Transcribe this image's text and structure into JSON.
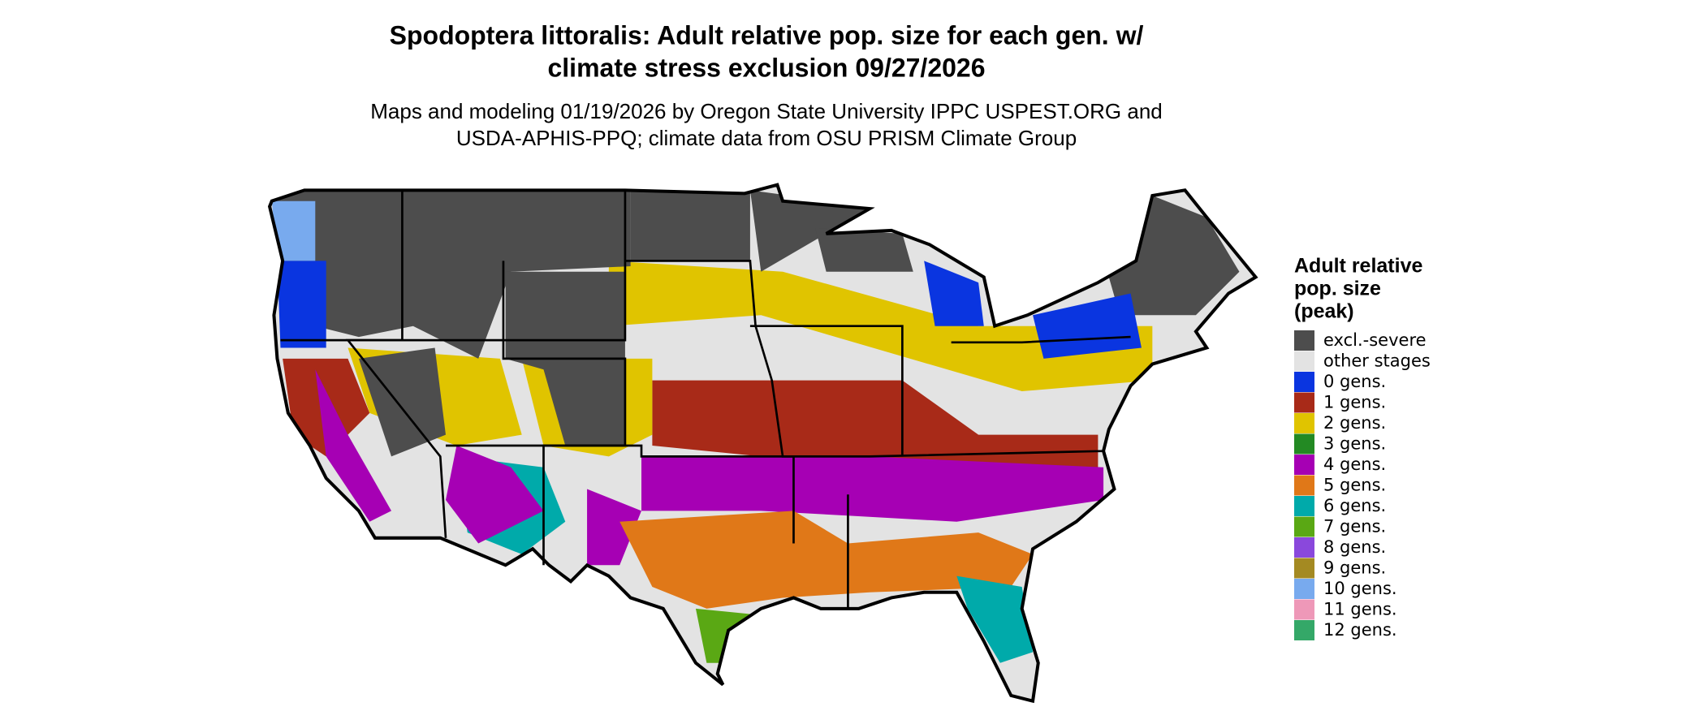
{
  "title": [
    "Spodoptera littoralis: Adult relative pop. size for each gen. w/",
    "climate stress exclusion 09/27/2026"
  ],
  "subtitle": [
    "Maps and modeling 01/19/2026 by Oregon State University IPPC USPEST.ORG and",
    "USDA-APHIS-PPQ; climate data from OSU PRISM Climate Group"
  ],
  "legend": {
    "title": [
      "Adult relative",
      "pop. size",
      "(peak)"
    ],
    "items": [
      {
        "label": "excl.-severe",
        "color": "#4d4d4d"
      },
      {
        "label": "other stages",
        "color": "#e3e3e3"
      },
      {
        "label": "0 gens.",
        "color": "#0a35e0"
      },
      {
        "label": "1 gens.",
        "color": "#a82a18"
      },
      {
        "label": "2 gens.",
        "color": "#e0c400"
      },
      {
        "label": "3 gens.",
        "color": "#238a23"
      },
      {
        "label": "4 gens.",
        "color": "#a600b4"
      },
      {
        "label": "5 gens.",
        "color": "#e07818"
      },
      {
        "label": "6 gens.",
        "color": "#00aaaa"
      },
      {
        "label": "7 gens.",
        "color": "#5aa814"
      },
      {
        "label": "8 gens.",
        "color": "#8a48dc"
      },
      {
        "label": "9 gens.",
        "color": "#a48a22"
      },
      {
        "label": "10 gens.",
        "color": "#78aaee"
      },
      {
        "label": "11 gens.",
        "color": "#ee98b8"
      },
      {
        "label": "12 gens.",
        "color": "#34a868"
      }
    ]
  }
}
